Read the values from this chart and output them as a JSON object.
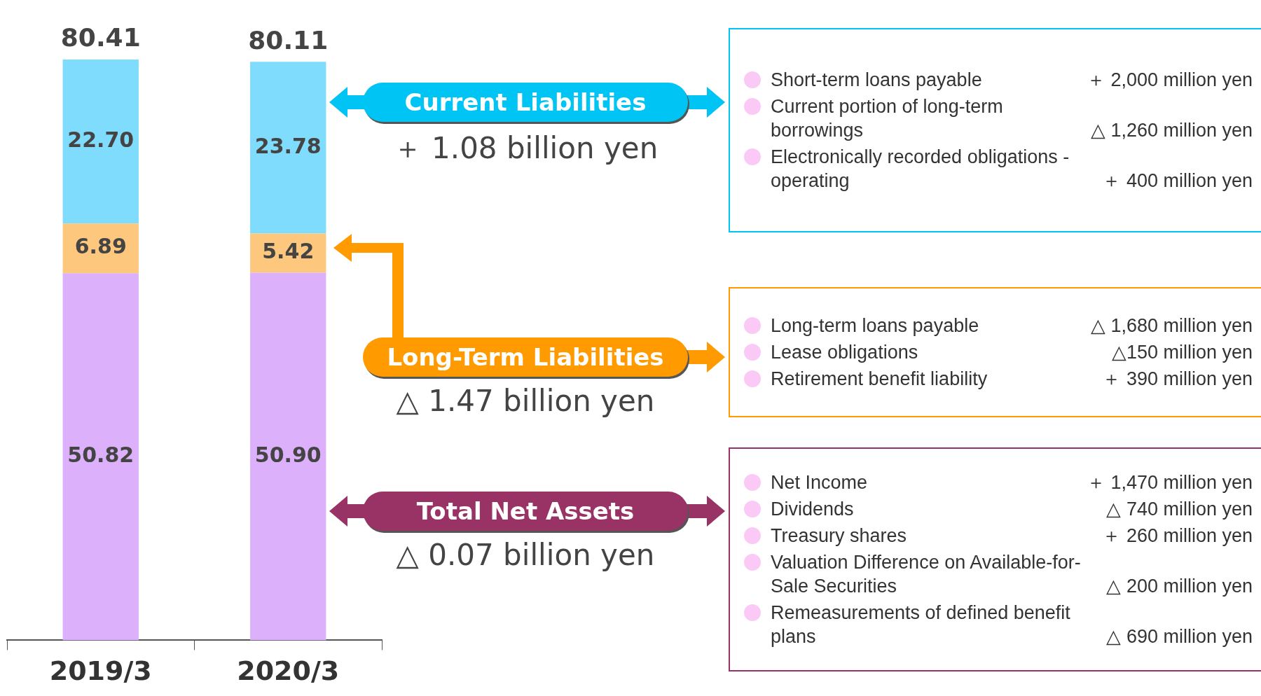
{
  "chart_data": {
    "type": "bar",
    "stacked": true,
    "categories": [
      "2019/3",
      "2020/3"
    ],
    "series": [
      {
        "name": "Total Net Assets",
        "color": "#dcb0fa",
        "values": [
          50.82,
          50.9
        ],
        "value_labels": [
          "50.82",
          "50.90"
        ]
      },
      {
        "name": "Long-Term Liabilities",
        "color": "#fec77e",
        "values": [
          6.89,
          5.42
        ],
        "value_labels": [
          "6.89",
          "5.42"
        ]
      },
      {
        "name": "Current Liabilities",
        "color": "#80dcfc",
        "values": [
          22.7,
          23.78
        ],
        "value_labels": [
          "22.70",
          "23.78"
        ]
      }
    ],
    "totals": [
      "80.41",
      "80.11"
    ],
    "annotations": [
      "＋ 1.08 billion yen",
      "△ 1.47 billion yen",
      "△ 0.07 billion yen",
      "Short-term loans payable",
      "＋ 2,000 million yen",
      "Current portion of long-term borrowings",
      "△ 1,260 million yen",
      "Electronically recorded obligations - operating",
      "＋ 400 million yen",
      "Long-term loans payable",
      "△ 1,680 million yen",
      "Lease obligations",
      "△150 million yen",
      "Retirement benefit liability",
      "＋ 390 million yen",
      "Net Income",
      "＋ 1,470 million yen",
      "Dividends",
      "△ 740 million yen",
      "Treasury shares",
      "＋ 260 million yen",
      "Valuation Difference on Available-for-Sale Securities",
      "△ 200 million yen",
      "Remeasurements of defined benefit plans",
      "△ 690 million yen"
    ]
  }
}
